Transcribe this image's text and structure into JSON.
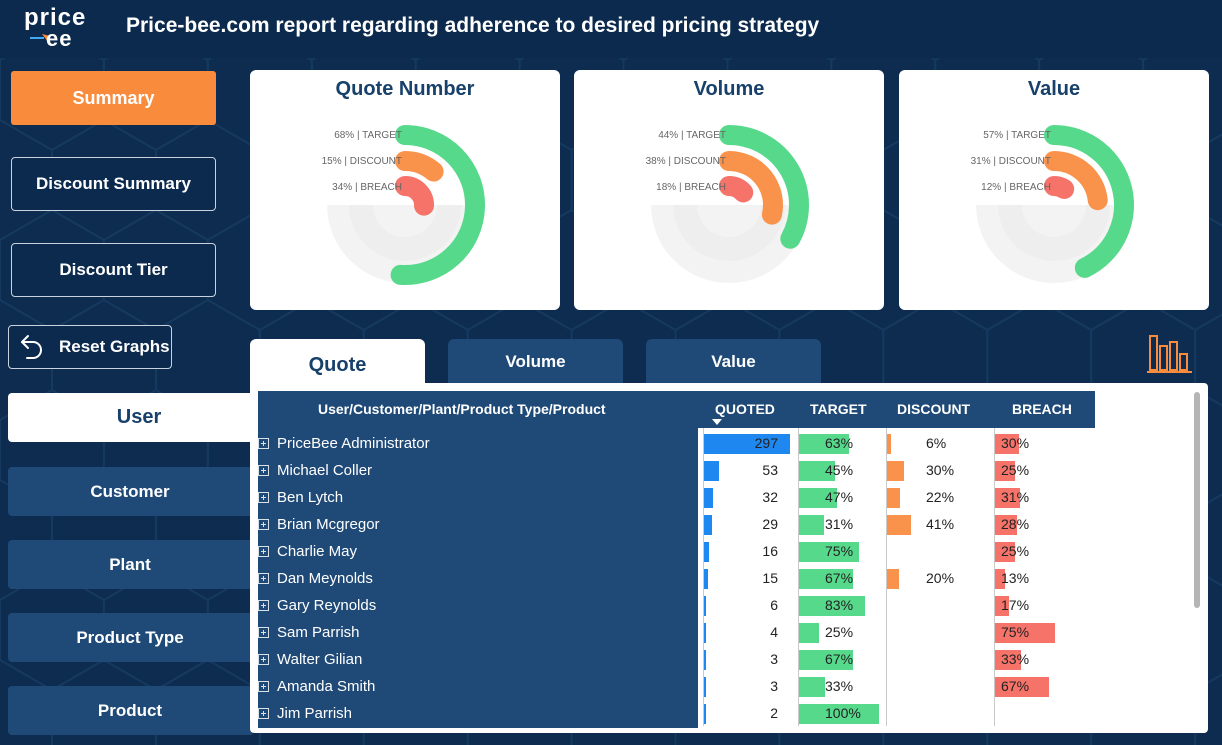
{
  "header": {
    "logo_top": "price",
    "logo_bottom": "ee",
    "title": "Price-bee.com report regarding adherence to desired pricing strategy"
  },
  "nav": {
    "summary": "Summary",
    "discount_summary": "Discount Summary",
    "discount_tier": "Discount Tier",
    "reset": "Reset Graphs",
    "user": "User",
    "customer": "Customer",
    "plant": "Plant",
    "product_type": "Product Type",
    "product": "Product"
  },
  "gauges": [
    {
      "title": "Quote Number",
      "target": 68,
      "discount": 15,
      "breach": 34,
      "target_label": "68% | TARGET",
      "discount_label": "15% | DISCOUNT",
      "breach_label": "34% | BREACH"
    },
    {
      "title": "Volume",
      "target": 44,
      "discount": 38,
      "breach": 18,
      "target_label": "44% | TARGET",
      "discount_label": "38% | DISCOUNT",
      "breach_label": "18% | BREACH"
    },
    {
      "title": "Value",
      "target": 57,
      "discount": 31,
      "breach": 12,
      "target_label": "57% | TARGET",
      "discount_label": "31% | DISCOUNT",
      "breach_label": "12% | BREACH"
    }
  ],
  "colors": {
    "target": "#57d98b",
    "discount": "#f9924a",
    "breach": "#f6736a",
    "quoted": "#1e88f0",
    "navy": "#1f4a77",
    "accent": "#f98b3c"
  },
  "tabs": {
    "quote": "Quote",
    "volume": "Volume",
    "value": "Value"
  },
  "table": {
    "headers": {
      "name": "User/Customer/Plant/Product Type/Product",
      "quoted": "QUOTED",
      "target": "TARGET",
      "discount": "DISCOUNT",
      "breach": "BREACH"
    },
    "rows": [
      {
        "name": "PriceBee Administrator",
        "quoted": 297,
        "target": 63,
        "discount": 6,
        "breach": 30
      },
      {
        "name": "Michael Coller",
        "quoted": 53,
        "target": 45,
        "discount": 30,
        "breach": 25
      },
      {
        "name": "Ben Lytch",
        "quoted": 32,
        "target": 47,
        "discount": 22,
        "breach": 31
      },
      {
        "name": "Brian Mcgregor",
        "quoted": 29,
        "target": 31,
        "discount": 41,
        "breach": 28
      },
      {
        "name": "Charlie May",
        "quoted": 16,
        "target": 75,
        "discount": null,
        "breach": 25
      },
      {
        "name": "Dan Meynolds",
        "quoted": 15,
        "target": 67,
        "discount": 20,
        "breach": 13
      },
      {
        "name": "Gary Reynolds",
        "quoted": 6,
        "target": 83,
        "discount": null,
        "breach": 17
      },
      {
        "name": "Sam Parrish",
        "quoted": 4,
        "target": 25,
        "discount": null,
        "breach": 75
      },
      {
        "name": "Walter Gilian",
        "quoted": 3,
        "target": 67,
        "discount": null,
        "breach": 33
      },
      {
        "name": "Amanda Smith",
        "quoted": 3,
        "target": 33,
        "discount": null,
        "breach": 67
      },
      {
        "name": "Jim Parrish",
        "quoted": 2,
        "target": 100,
        "discount": null,
        "breach": null
      }
    ]
  }
}
